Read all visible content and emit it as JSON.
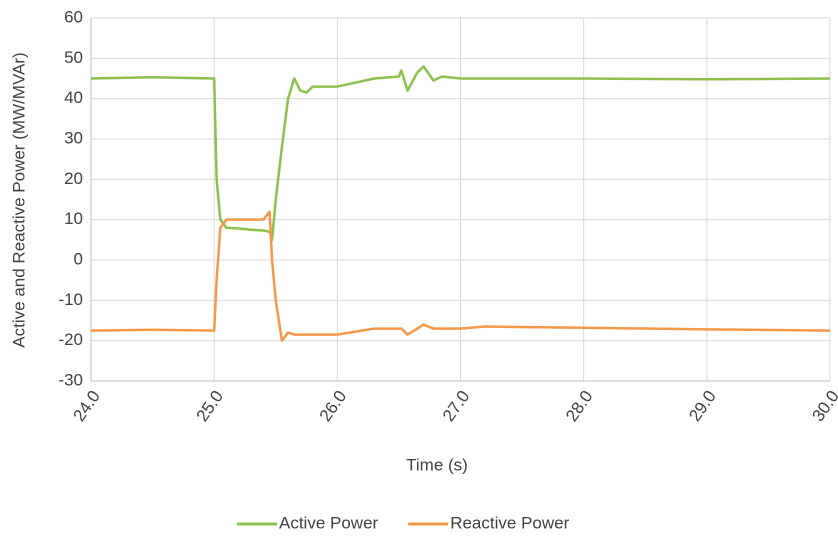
{
  "chart_data": {
    "type": "line",
    "x_label": "Time (s)",
    "y_label": "Active and Reactive Power (MW/MVAr)",
    "x": [
      24.0,
      24.5,
      25.0,
      25.02,
      25.05,
      25.1,
      25.2,
      25.3,
      25.4,
      25.45,
      25.47,
      25.5,
      25.55,
      25.6,
      25.65,
      25.7,
      25.75,
      25.8,
      26.0,
      26.3,
      26.5,
      26.52,
      26.57,
      26.65,
      26.7,
      26.78,
      26.85,
      27.0,
      27.2,
      28.0,
      29.0,
      30.0
    ],
    "series": [
      {
        "name": "Active Power",
        "color": "#8fbf4f",
        "values": [
          45,
          45.3,
          45,
          20,
          10,
          8,
          7.8,
          7.5,
          7.3,
          7,
          5,
          15,
          28,
          40,
          45,
          42,
          41.5,
          43,
          43,
          45,
          45.5,
          47,
          42,
          46.5,
          48,
          44.5,
          45.5,
          45,
          45,
          45,
          44.8,
          45
        ]
      },
      {
        "name": "Reactive Power",
        "color": "#f4984a",
        "values": [
          -17.5,
          -17.3,
          -17.5,
          -5,
          8,
          10,
          10,
          10,
          10,
          12,
          0,
          -10,
          -20,
          -18,
          -18.5,
          -18.5,
          -18.5,
          -18.5,
          -18.5,
          -17,
          -17,
          -17,
          -18.5,
          -17,
          -16,
          -17,
          -17,
          -17,
          -16.5,
          -16.8,
          -17.2,
          -17.5
        ]
      }
    ],
    "xlim": [
      24.0,
      30.0
    ],
    "xticks": [
      {
        "value": 24,
        "label": "24.0"
      },
      {
        "value": 25,
        "label": "25.0"
      },
      {
        "value": 26,
        "label": "26.0"
      },
      {
        "value": 27,
        "label": "27.0"
      },
      {
        "value": 28,
        "label": "28.0"
      },
      {
        "value": 29,
        "label": "29.0"
      },
      {
        "value": 30,
        "label": "30.0"
      }
    ],
    "ylim": [
      -30,
      60
    ],
    "yticks": [
      -30,
      -20,
      -10,
      0,
      10,
      20,
      30,
      40,
      50,
      60
    ],
    "grid": true,
    "legend": "bottom"
  }
}
